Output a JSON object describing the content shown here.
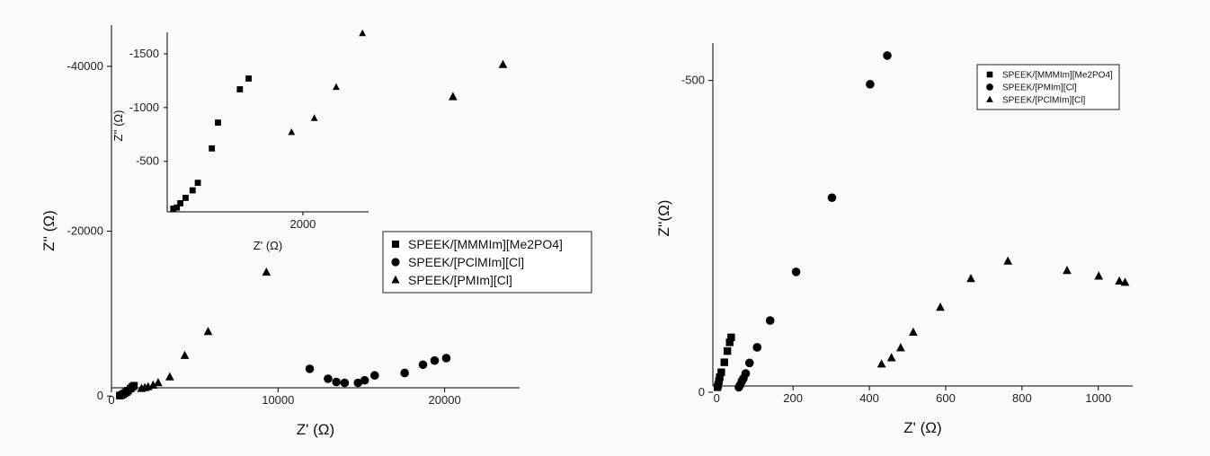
{
  "chart_data": [
    {
      "type": "scatter",
      "panel": "left-main",
      "title": "",
      "xlabel": "Z' (Ω)",
      "ylabel": "Z'' (Ω)",
      "xlim": [
        0,
        24500
      ],
      "ylim": [
        -1000,
        -45000
      ],
      "xticks": [
        0,
        10000,
        20000
      ],
      "xtick_labels": [
        "0",
        "10000",
        "20000"
      ],
      "yticks": [
        0,
        -20000,
        -40000
      ],
      "ytick_labels": [
        "0",
        "-20000",
        "-40000"
      ],
      "grid": false,
      "legend_position": "middle-right",
      "series": [
        {
          "name": "SPEEK/[MMMIm][Me2PO4]",
          "marker": "square",
          "x": [
            500,
            600,
            700,
            800,
            900,
            1000,
            1150,
            1250,
            1350
          ],
          "y": [
            -50,
            -120,
            -220,
            -350,
            -480,
            -650,
            -900,
            -1100,
            -1250
          ]
        },
        {
          "name": "SPEEK/[PClMIm][Cl]",
          "marker": "circle",
          "x": [
            11900,
            13000,
            13500,
            14000,
            14800,
            15200,
            15800,
            17600,
            18700,
            19400,
            20100
          ],
          "y": [
            -3300,
            -2100,
            -1700,
            -1600,
            -1600,
            -1900,
            -2500,
            -2800,
            -3800,
            -4300,
            -4600
          ]
        },
        {
          "name": "SPEEK/[PMIm][Cl]",
          "marker": "triangle",
          "x": [
            1800,
            2000,
            2200,
            2500,
            2800,
            3500,
            4400,
            5800,
            9300,
            20500,
            23500
          ],
          "y": [
            -900,
            -1000,
            -1100,
            -1300,
            -1600,
            -2300,
            -4900,
            -7800,
            -15000,
            -36300,
            -40200
          ]
        }
      ]
    },
    {
      "type": "scatter",
      "panel": "left-inset",
      "title": "",
      "xlabel": "Z' (Ω)",
      "ylabel": "Z'' (Ω)",
      "xlim": [
        450,
        2750
      ],
      "ylim": [
        -30,
        -1700
      ],
      "xticks": [
        2000
      ],
      "xtick_labels": [
        "2000"
      ],
      "yticks": [
        -500,
        -1000,
        -1500
      ],
      "ytick_labels": [
        "-500",
        "-1000",
        "-1500"
      ],
      "grid": false,
      "series": [
        {
          "name": "SPEEK/[MMMIm][Me2PO4]",
          "marker": "square",
          "x": [
            520,
            560,
            600,
            660,
            740,
            800,
            960,
            1030,
            1280,
            1380
          ],
          "y": [
            -60,
            -70,
            -110,
            -160,
            -230,
            -300,
            -620,
            -860,
            -1170,
            -1270
          ]
        },
        {
          "name": "SPEEK/[PMIm][Cl]",
          "marker": "triangle",
          "x": [
            1870,
            2130,
            2380,
            2680
          ],
          "y": [
            -770,
            -900,
            -1190,
            -1690
          ]
        }
      ]
    },
    {
      "type": "scatter",
      "panel": "right",
      "title": "",
      "xlabel": "Z' (Ω)",
      "ylabel": "Z''(Ω)",
      "xlim": [
        -10,
        1090
      ],
      "ylim": [
        -10,
        -560
      ],
      "xticks": [
        0,
        200,
        400,
        600,
        800,
        1000
      ],
      "xtick_labels": [
        "0",
        "200",
        "400",
        "600",
        "800",
        "1000"
      ],
      "yticks": [
        0,
        -500
      ],
      "ytick_labels": [
        "0",
        "-500"
      ],
      "grid": false,
      "legend_position": "top-right",
      "series": [
        {
          "name": "SPEEK/[MMMIm][Me2PO4]",
          "marker": "square",
          "x": [
            2,
            4,
            6,
            8,
            12,
            20,
            28,
            34,
            38
          ],
          "y": [
            -8,
            -12,
            -18,
            -24,
            -32,
            -48,
            -66,
            -80,
            -88
          ]
        },
        {
          "name": "SPEEK/[PMIm][Cl]",
          "marker": "circle",
          "x": [
            58,
            62,
            66,
            70,
            76,
            86,
            106,
            140,
            208,
            302,
            402,
            447
          ],
          "y": [
            -8,
            -12,
            -18,
            -22,
            -30,
            -47,
            -72,
            -115,
            -193,
            -312,
            -494,
            -540
          ]
        },
        {
          "name": "SPEEK/[PClMIm][Cl]",
          "marker": "triangle",
          "x": [
            432,
            458,
            482,
            515,
            586,
            666,
            763,
            918,
            1001,
            1055,
            1070
          ],
          "y": [
            -45,
            -55,
            -71,
            -96,
            -136,
            -182,
            -210,
            -195,
            -186,
            -178,
            -176
          ]
        }
      ]
    }
  ]
}
